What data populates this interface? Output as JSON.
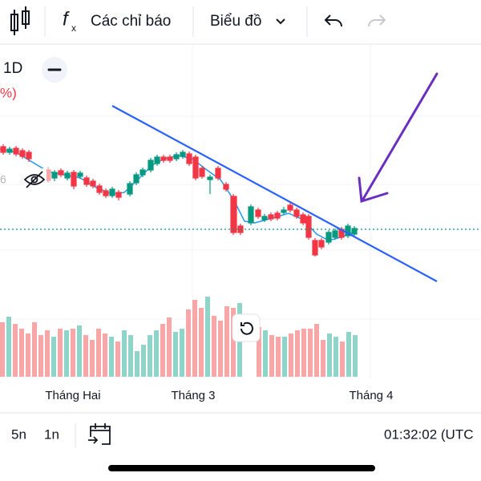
{
  "toolbar": {
    "indicators": "Các chỉ báo",
    "chart_menu": "Biểu đồ"
  },
  "legend": {
    "interval": "1D",
    "change": "%)",
    "value": "6"
  },
  "time_axis": [
    "Tháng Hai",
    "Tháng 3",
    "Tháng 4"
  ],
  "bottom_bar": {
    "ranges": [
      "5n",
      "1n"
    ],
    "clock": "01:32:02 (UTC"
  }
}
